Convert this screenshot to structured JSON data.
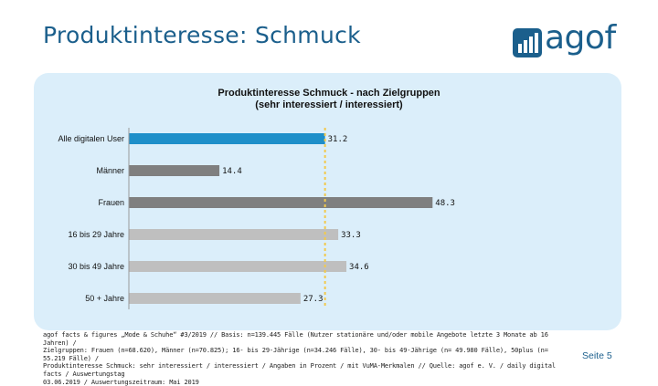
{
  "header": {
    "title": "Produktinteresse: Schmuck",
    "logo_text": "agof"
  },
  "chart_data": {
    "type": "bar",
    "orientation": "horizontal",
    "title_line1": "Produktinteresse Schmuck - nach Zielgruppen",
    "title_line2": "(sehr interessiert / interessiert)",
    "categories": [
      "Alle digitalen User",
      "Männer",
      "Frauen",
      "16 bis 29 Jahre",
      "30 bis 49 Jahre",
      "50 + Jahre"
    ],
    "values": [
      31.2,
      14.4,
      48.3,
      33.3,
      34.6,
      27.3
    ],
    "value_labels": [
      "31.2",
      "14.4",
      "48.3",
      "33.3",
      "34.6",
      "27.3"
    ],
    "bar_colors": [
      "#1e8fc9",
      "#7f7f7f",
      "#7f7f7f",
      "#bfbfbf",
      "#bfbfbf",
      "#bfbfbf"
    ],
    "reference_line_value": 31.2,
    "reference_line_color": "#f2c94c",
    "xlim": [
      0,
      50
    ],
    "grid": false,
    "xlabel": "",
    "ylabel": ""
  },
  "footnote": {
    "lines": [
      "agof facts & figures „Mode & Schuhe“ #3/2019 // Basis: n=139.445 Fälle (Nutzer stationäre und/oder mobile Angebote letzte 3 Monate ab 16 Jahren) /",
      "Zielgruppen: Frauen (n=68.620), Männer (n=70.825); 16- bis 29-Jährige (n=34.246 Fälle), 30- bis 49-Jährige (n= 49.980 Fälle), 50plus (n= 55.219 Fälle) /",
      "Produktinteresse Schmuck: sehr interessiert / interessiert / Angaben in Prozent / mit VuMA-Merkmalen // Quelle: agof e. V. / daily digital facts / Auswertungstag",
      "03.06.2019 / Auswertungszeitraum: Mai 2019"
    ]
  },
  "page_number": "Seite 5",
  "colors": {
    "brand": "#1b5f8c",
    "panel_bg": "#dbeefa"
  }
}
